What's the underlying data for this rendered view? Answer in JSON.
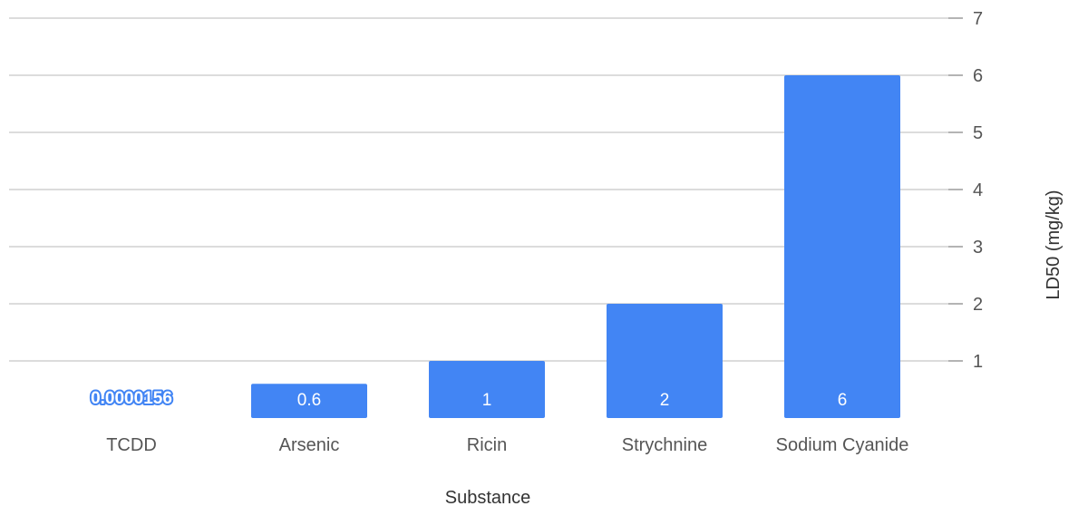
{
  "chart_data": {
    "type": "bar",
    "title": "",
    "xlabel": "Substance",
    "ylabel": "LD50 (mg/kg)",
    "categories": [
      "TCDD",
      "Arsenic",
      "Ricin",
      "Strychnine",
      "Sodium Cyanide"
    ],
    "values": [
      1.56e-05,
      0.6,
      1,
      2,
      6
    ],
    "data_labels": [
      "0.0000156",
      "0.6",
      "1",
      "2",
      "6"
    ],
    "ylim": [
      0,
      7
    ],
    "yticks": [
      1,
      2,
      3,
      4,
      5,
      6,
      7
    ],
    "y_axis_position": "right",
    "grid": true,
    "legend": "none",
    "bar_color": "#4285f4"
  }
}
